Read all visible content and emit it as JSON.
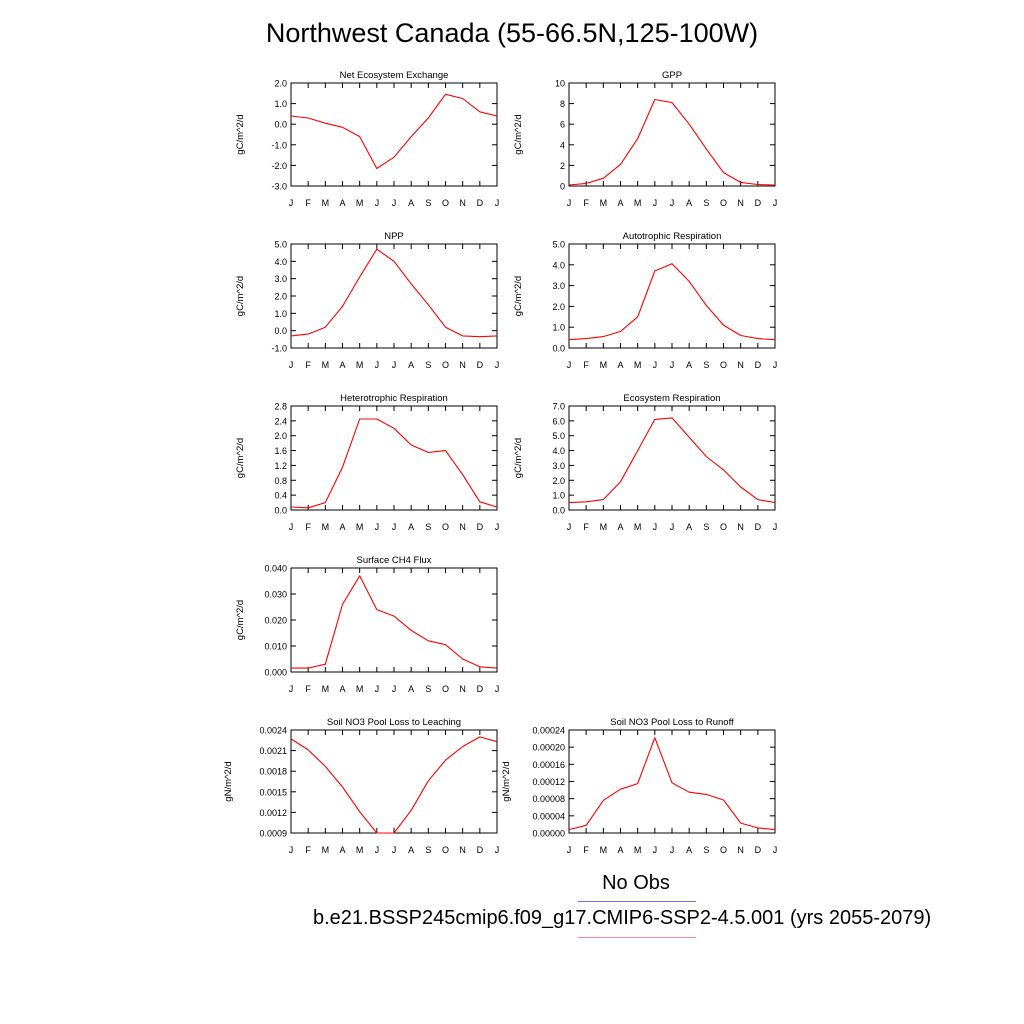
{
  "page": {
    "title": "Northwest Canada (55-66.5N,125-100W)",
    "legend": {
      "obs_label": "No Obs",
      "case_label": "b.e21.BSSP245cmip6.f09_g17.CMIP6-SSP2-4.5.001 (yrs 2055-2079)",
      "colors": {
        "obs": "#6f6fe6",
        "case": "#ef8b8b"
      }
    }
  },
  "chart_data": [
    {
      "type": "line",
      "title": "Net Ecosystem Exchange",
      "ylabel": "gC/m^2/d",
      "x": [
        "J",
        "F",
        "M",
        "A",
        "M",
        "J",
        "J",
        "A",
        "S",
        "O",
        "N",
        "D",
        "J"
      ],
      "ylim": [
        -3.0,
        2.0
      ],
      "yticks": [
        -3.0,
        -2.0,
        -1.0,
        0.0,
        1.0,
        2.0
      ],
      "ytick_labels": [
        "-3.0",
        "-2.0",
        "-1.0",
        "0.0",
        "1.0",
        "2.0"
      ],
      "series": [
        {
          "color": "#ff0000",
          "values": [
            0.4,
            0.3,
            0.05,
            -0.15,
            -0.6,
            -2.15,
            -1.6,
            -0.6,
            0.3,
            1.45,
            1.25,
            0.6,
            0.4
          ]
        }
      ]
    },
    {
      "type": "line",
      "title": "GPP",
      "ylabel": "gC/m^2/d",
      "x": [
        "J",
        "F",
        "M",
        "A",
        "M",
        "J",
        "J",
        "A",
        "S",
        "O",
        "N",
        "D",
        "J"
      ],
      "ylim": [
        0,
        10
      ],
      "yticks": [
        0,
        2,
        4,
        6,
        8,
        10
      ],
      "ytick_labels": [
        "0",
        "2",
        "4",
        "6",
        "8",
        "10"
      ],
      "series": [
        {
          "color": "#ff0000",
          "values": [
            0.1,
            0.25,
            0.75,
            2.1,
            4.6,
            8.4,
            8.1,
            6.0,
            3.6,
            1.3,
            0.35,
            0.15,
            0.1
          ]
        }
      ]
    },
    {
      "type": "line",
      "title": "NPP",
      "ylabel": "gC/m^2/d",
      "x": [
        "J",
        "F",
        "M",
        "A",
        "M",
        "J",
        "J",
        "A",
        "S",
        "O",
        "N",
        "D",
        "J"
      ],
      "ylim": [
        -1.0,
        5.0
      ],
      "yticks": [
        -1.0,
        0.0,
        1.0,
        2.0,
        3.0,
        4.0,
        5.0
      ],
      "ytick_labels": [
        "-1.0",
        "0.0",
        "1.0",
        "2.0",
        "3.0",
        "4.0",
        "5.0"
      ],
      "series": [
        {
          "color": "#ff0000",
          "values": [
            -0.3,
            -0.2,
            0.2,
            1.4,
            3.1,
            4.7,
            4.0,
            2.7,
            1.5,
            0.2,
            -0.3,
            -0.35,
            -0.3
          ]
        }
      ]
    },
    {
      "type": "line",
      "title": "Autotrophic Respiration",
      "ylabel": "gC/m^2/d",
      "x": [
        "J",
        "F",
        "M",
        "A",
        "M",
        "J",
        "J",
        "A",
        "S",
        "O",
        "N",
        "D",
        "J"
      ],
      "ylim": [
        0.0,
        5.0
      ],
      "yticks": [
        0.0,
        1.0,
        2.0,
        3.0,
        4.0,
        5.0
      ],
      "ytick_labels": [
        "0.0",
        "1.0",
        "2.0",
        "3.0",
        "4.0",
        "5.0"
      ],
      "series": [
        {
          "color": "#ff0000",
          "values": [
            0.4,
            0.45,
            0.55,
            0.8,
            1.5,
            3.7,
            4.05,
            3.2,
            2.05,
            1.1,
            0.6,
            0.45,
            0.4
          ]
        }
      ]
    },
    {
      "type": "line",
      "title": "Heterotrophic Respiration",
      "ylabel": "gC/m^2/d",
      "x": [
        "J",
        "F",
        "M",
        "A",
        "M",
        "J",
        "J",
        "A",
        "S",
        "O",
        "N",
        "D",
        "J"
      ],
      "ylim": [
        0.0,
        2.8
      ],
      "yticks": [
        0.0,
        0.4,
        0.8,
        1.2,
        1.6,
        2.0,
        2.4,
        2.8
      ],
      "ytick_labels": [
        "0.0",
        "0.4",
        "0.8",
        "1.2",
        "1.6",
        "2.0",
        "2.4",
        "2.8"
      ],
      "series": [
        {
          "color": "#ff0000",
          "values": [
            0.08,
            0.06,
            0.2,
            1.15,
            2.45,
            2.45,
            2.2,
            1.75,
            1.55,
            1.6,
            0.95,
            0.22,
            0.08
          ]
        }
      ]
    },
    {
      "type": "line",
      "title": "Ecosystem Respiration",
      "ylabel": "gC/m^2/d",
      "x": [
        "J",
        "F",
        "M",
        "A",
        "M",
        "J",
        "J",
        "A",
        "S",
        "O",
        "N",
        "D",
        "J"
      ],
      "ylim": [
        0.0,
        7.0
      ],
      "yticks": [
        0.0,
        1.0,
        2.0,
        3.0,
        4.0,
        5.0,
        6.0,
        7.0
      ],
      "ytick_labels": [
        "0.0",
        "1.0",
        "2.0",
        "3.0",
        "4.0",
        "5.0",
        "6.0",
        "7.0"
      ],
      "series": [
        {
          "color": "#ff0000",
          "values": [
            0.5,
            0.55,
            0.7,
            1.9,
            4.0,
            6.1,
            6.2,
            4.9,
            3.6,
            2.7,
            1.55,
            0.7,
            0.5
          ]
        }
      ]
    },
    {
      "type": "line",
      "title": "Surface CH4 Flux",
      "ylabel": "gC/m^2/d",
      "x": [
        "J",
        "F",
        "M",
        "A",
        "M",
        "J",
        "J",
        "A",
        "S",
        "O",
        "N",
        "D",
        "J"
      ],
      "ylim": [
        0.0,
        0.04
      ],
      "yticks": [
        0.0,
        0.01,
        0.02,
        0.03,
        0.04
      ],
      "ytick_labels": [
        "0.000",
        "0.010",
        "0.020",
        "0.030",
        "0.040"
      ],
      "series": [
        {
          "color": "#ff0000",
          "values": [
            0.0015,
            0.0015,
            0.003,
            0.026,
            0.037,
            0.024,
            0.0215,
            0.016,
            0.012,
            0.0105,
            0.005,
            0.002,
            0.0015
          ]
        }
      ]
    },
    {
      "type": "line",
      "title": "Soil NO3 Pool Loss to Leaching",
      "ylabel": "gN/m^2/d",
      "x": [
        "J",
        "F",
        "M",
        "A",
        "M",
        "J",
        "J",
        "A",
        "S",
        "O",
        "N",
        "D",
        "J"
      ],
      "ylim": [
        0.0009,
        0.0024
      ],
      "yticks": [
        0.0009,
        0.0012,
        0.0015,
        0.0018,
        0.0021,
        0.0024
      ],
      "ytick_labels": [
        "0.0009",
        "0.0012",
        "0.0015",
        "0.0018",
        "0.0021",
        "0.0024"
      ],
      "series": [
        {
          "color": "#ff0000",
          "values": [
            0.00227,
            0.00211,
            0.00187,
            0.00157,
            0.00121,
            0.0009,
            0.0009,
            0.00123,
            0.00166,
            0.00196,
            0.00216,
            0.0023,
            0.00223
          ]
        }
      ]
    },
    {
      "type": "line",
      "title": "Soil NO3 Pool Loss to Runoff",
      "ylabel": "gN/m^2/d",
      "x": [
        "J",
        "F",
        "M",
        "A",
        "M",
        "J",
        "J",
        "A",
        "S",
        "O",
        "N",
        "D",
        "J"
      ],
      "ylim": [
        0.0,
        0.00024
      ],
      "yticks": [
        0.0,
        4e-05,
        8e-05,
        0.00012,
        0.00016,
        0.0002,
        0.00024
      ],
      "ytick_labels": [
        "0.00000",
        "0.00004",
        "0.00008",
        "0.00012",
        "0.00016",
        "0.00020",
        "0.00024"
      ],
      "series": [
        {
          "color": "#ff0000",
          "values": [
            8e-06,
            1.8e-05,
            7.6e-05,
            0.000102,
            0.000115,
            0.000222,
            0.000117,
            9.5e-05,
            9e-05,
            7.7e-05,
            2.3e-05,
            1.2e-05,
            8e-06
          ]
        }
      ]
    }
  ]
}
